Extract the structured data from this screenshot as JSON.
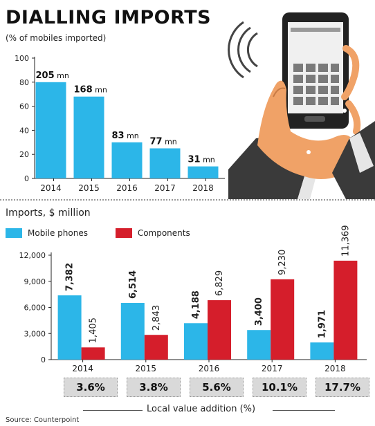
{
  "colors": {
    "mobile": "#2cb6e8",
    "components": "#d51e2b",
    "axis": "#222222",
    "box": "#d9d9d9"
  },
  "header": {
    "title": "DIALLING IMPORTS",
    "subtitle": "(% of mobiles imported)"
  },
  "illustration": {
    "icon": "hand-holding-smartphone-icon"
  },
  "section2": {
    "title": "Imports, $ million"
  },
  "local_value": {
    "caption": "Local value addition (%)",
    "values": [
      "3.6%",
      "3.8%",
      "5.6%",
      "10.1%",
      "17.7%"
    ]
  },
  "source": "Source: Counterpoint",
  "chart_data": [
    {
      "type": "bar",
      "title": "DIALLING IMPORTS",
      "subtitle": "(% of mobiles imported)",
      "categories": [
        "2014",
        "2015",
        "2016",
        "2017",
        "2018"
      ],
      "values": [
        80,
        68,
        30,
        25,
        10
      ],
      "data_labels": [
        "205",
        "168",
        "83",
        "77",
        "31"
      ],
      "data_label_unit": "mn",
      "ylim": [
        0,
        100
      ],
      "yticks": [
        "100",
        "80",
        "60",
        "40",
        "20",
        "0"
      ],
      "ytick_values": [
        100,
        80,
        60,
        40,
        20,
        0
      ]
    },
    {
      "type": "bar",
      "title": "Imports, $ million",
      "categories": [
        "2014",
        "2015",
        "2016",
        "2017",
        "2018"
      ],
      "series": [
        {
          "name": "Mobile phones",
          "values": [
            7382,
            6514,
            4188,
            3400,
            1971
          ],
          "labels": [
            "7,382",
            "6,514",
            "4,188",
            "3,400",
            "1,971"
          ]
        },
        {
          "name": "Components",
          "values": [
            1405,
            2843,
            6829,
            9230,
            11369
          ],
          "labels": [
            "1,405",
            "2,843",
            "6,829",
            "9,230",
            "11,369"
          ]
        }
      ],
      "ylim": [
        0,
        12000
      ],
      "yticks": [
        "12,000",
        "9,000",
        "6,000",
        "3,000",
        "0"
      ],
      "ytick_values": [
        12000,
        9000,
        6000,
        3000,
        0
      ],
      "legend": "top-left"
    }
  ]
}
